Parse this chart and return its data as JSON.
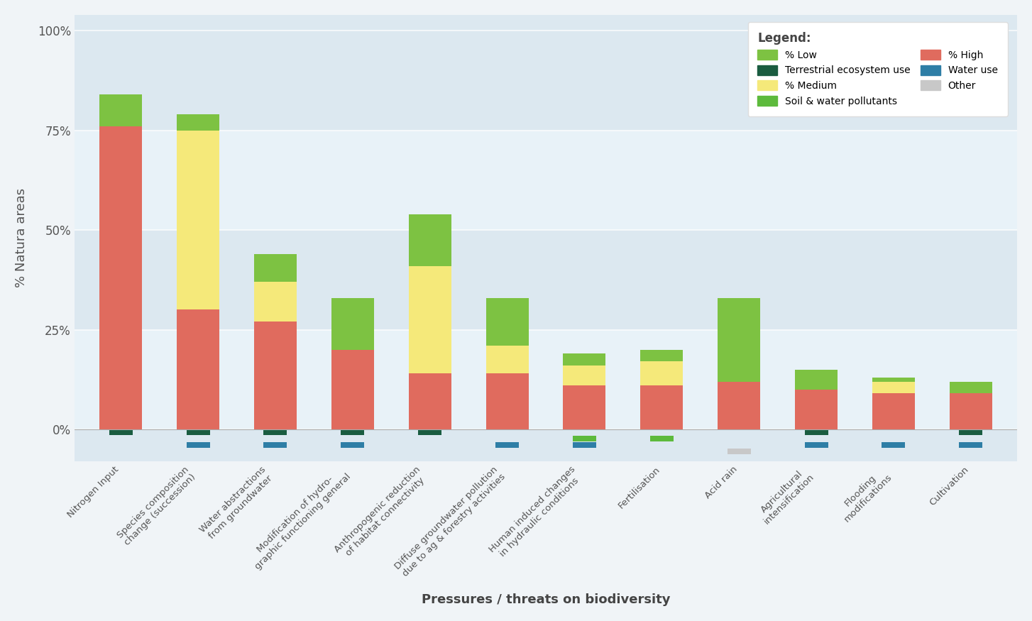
{
  "categories": [
    "Nitrogen Input",
    "Species composition\nchange (succession)",
    "Water abstractions\nfrom groundwater",
    "Modification of hydro-\ngraphic functioning general",
    "Anthropogenic reduction\nof habitat connectivity",
    "Diffuse groundwater pollution\ndue to ag & forestry activities",
    "Human induced changes\nin hydraulic conditions",
    "Fertilisation",
    "Acid rain",
    "Agricultural\nintensification",
    "Flooding\nmodifications",
    "Cultivation"
  ],
  "high": [
    76,
    30,
    27,
    20,
    14,
    14,
    11,
    11,
    12,
    10,
    9,
    9
  ],
  "medium": [
    0,
    45,
    10,
    0,
    27,
    7,
    5,
    6,
    0,
    0,
    3,
    0
  ],
  "low": [
    8,
    4,
    7,
    13,
    13,
    12,
    3,
    3,
    21,
    5,
    1,
    3
  ],
  "terrestrial": [
    1,
    2,
    1,
    1,
    3,
    0,
    0,
    0,
    0,
    1,
    0,
    1
  ],
  "soil_water": [
    0,
    0,
    0,
    0,
    0,
    0,
    1,
    1,
    0,
    0,
    0,
    0
  ],
  "water_use": [
    0,
    1,
    2,
    1,
    0,
    1,
    2,
    0,
    0,
    1,
    1,
    1
  ],
  "other": [
    0,
    0,
    0,
    0,
    0,
    0,
    0,
    0,
    2,
    0,
    0,
    0
  ],
  "colors": {
    "low": "#7dc242",
    "medium": "#f5e97a",
    "high": "#e06b5e",
    "terrestrial": "#1a5c40",
    "soil_water": "#5dba3c",
    "water_use": "#2e7ea6",
    "other": "#c8c8c8"
  },
  "ylabel": "% Natura areas",
  "xlabel": "Pressures / threats on biodiversity",
  "yticks": [
    0,
    25,
    50,
    75,
    100
  ],
  "ytick_labels": [
    "0%",
    "25%",
    "50%",
    "75%",
    "100%"
  ],
  "background_color": "#dce8f0",
  "band_color_light": "#e8f2f8",
  "band_color_mid": "#dce8f0",
  "legend_title": "Legend:"
}
